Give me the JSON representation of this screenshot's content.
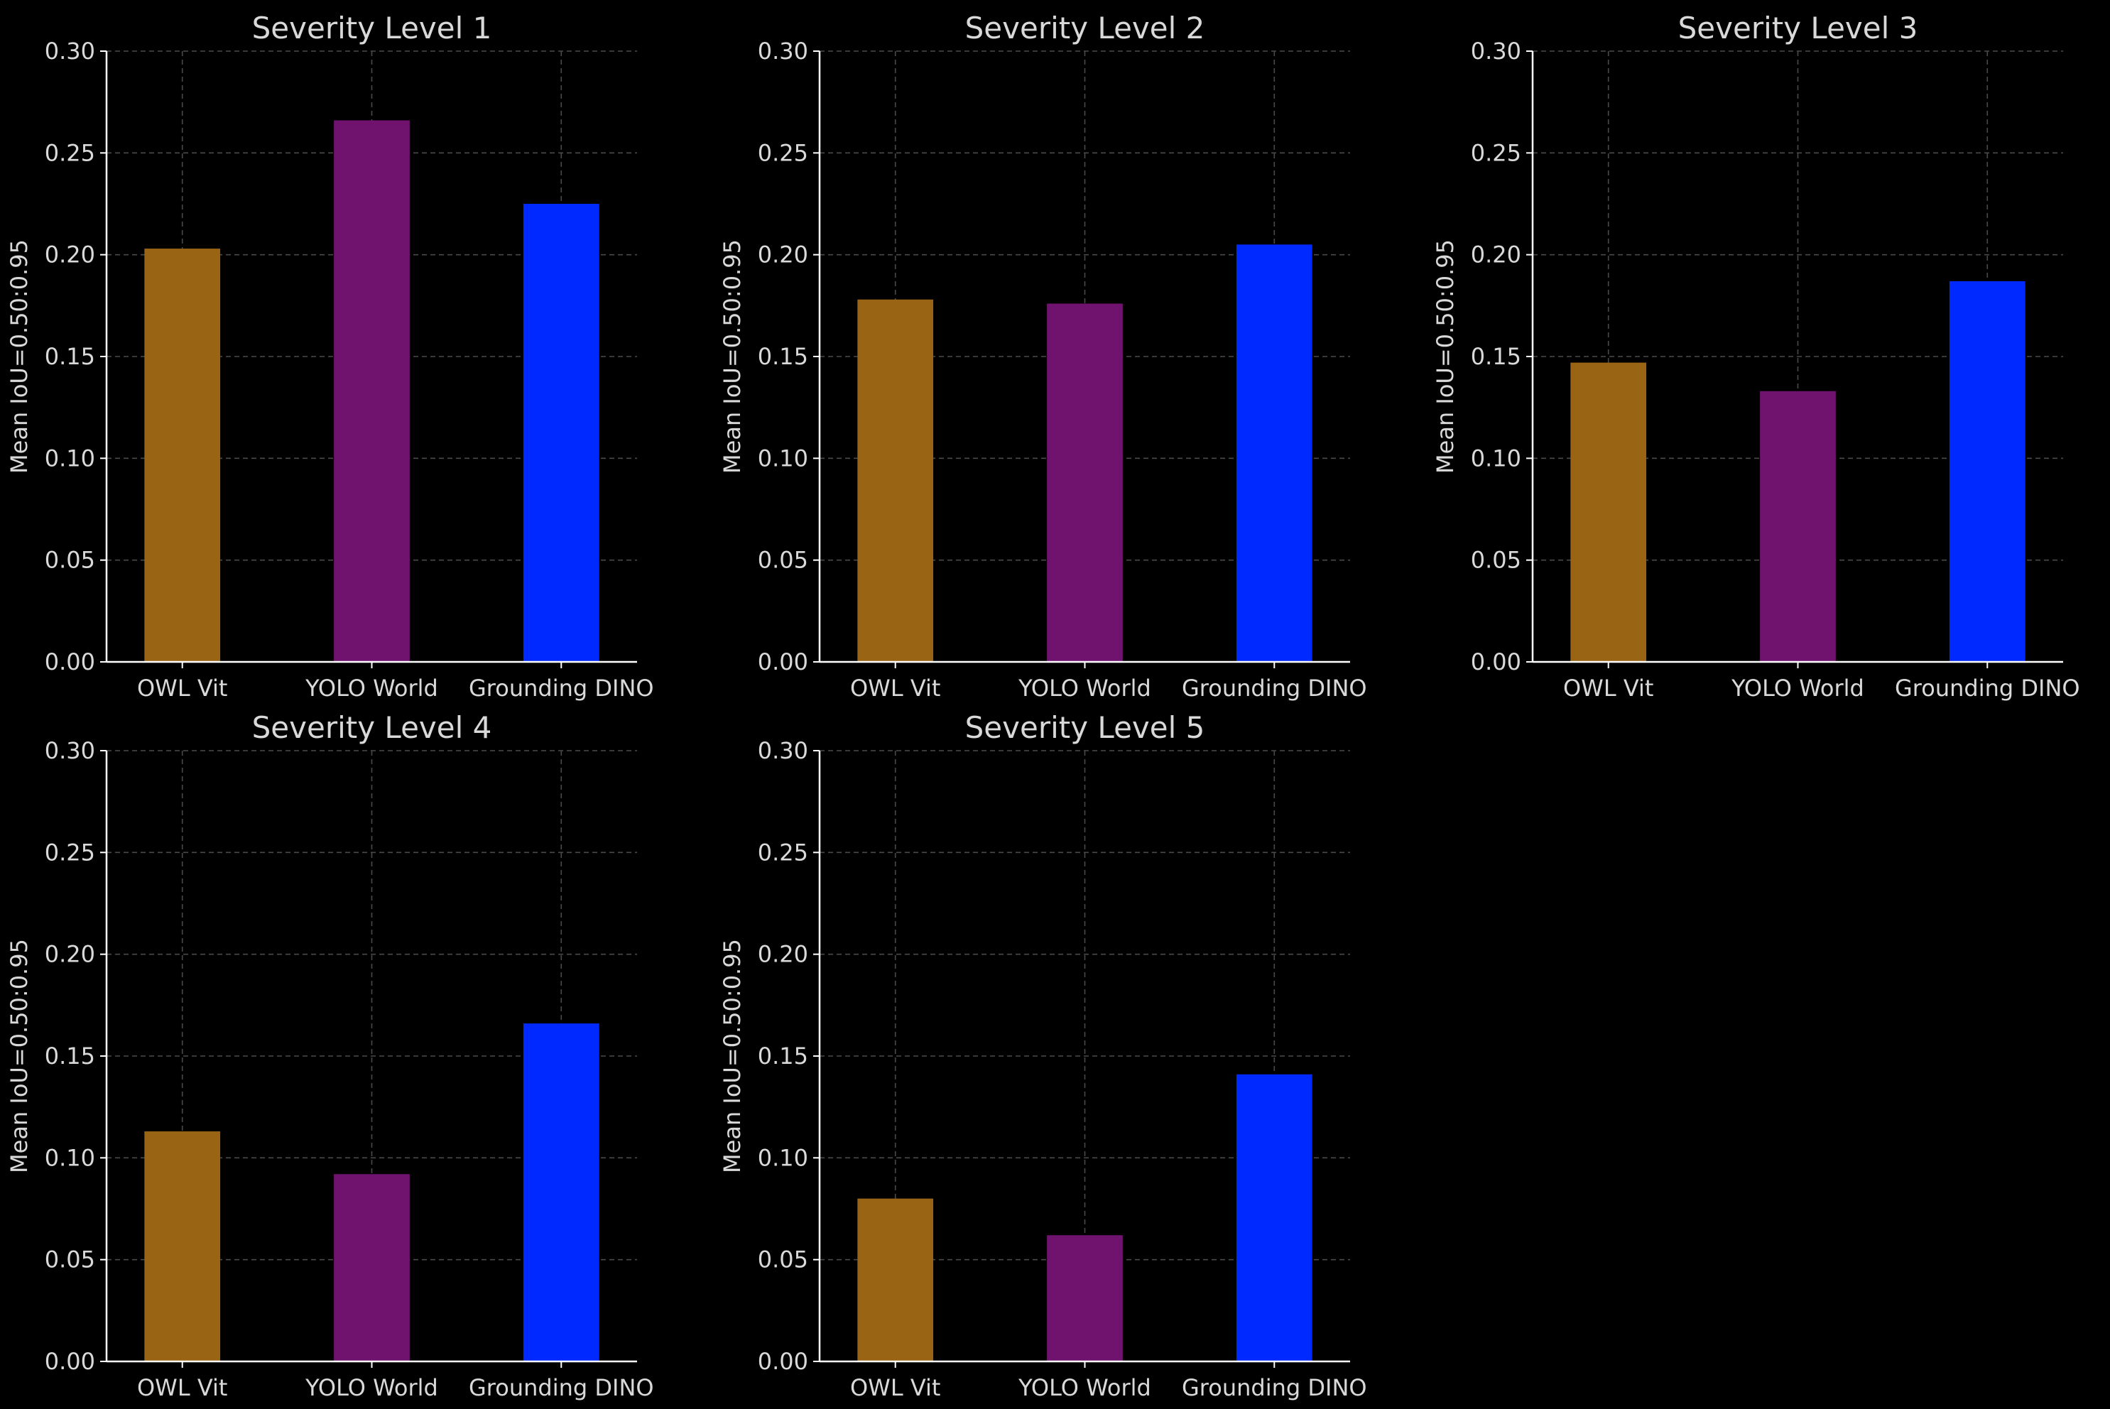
{
  "colors": {
    "background": "#000000",
    "text": "#d9d9d9",
    "axis": "#ffffff",
    "grid": "#4a4a4a",
    "bars": [
      "#996515",
      "#6f136f",
      "#0029ff"
    ]
  },
  "chart_data": [
    {
      "type": "bar",
      "title": "Severity Level 1",
      "xlabel": "",
      "ylabel": "Mean IoU=0.50:0.95",
      "categories": [
        "OWL Vit",
        "YOLO World",
        "Grounding DINO"
      ],
      "values": [
        0.203,
        0.266,
        0.225
      ],
      "ylim": [
        0,
        0.3
      ],
      "yticks": [
        "0.00",
        "0.05",
        "0.10",
        "0.15",
        "0.20",
        "0.25",
        "0.30"
      ],
      "grid": true
    },
    {
      "type": "bar",
      "title": "Severity Level 2",
      "xlabel": "",
      "ylabel": "Mean IoU=0.50:0.95",
      "categories": [
        "OWL Vit",
        "YOLO World",
        "Grounding DINO"
      ],
      "values": [
        0.178,
        0.176,
        0.205
      ],
      "ylim": [
        0,
        0.3
      ],
      "yticks": [
        "0.00",
        "0.05",
        "0.10",
        "0.15",
        "0.20",
        "0.25",
        "0.30"
      ],
      "grid": true
    },
    {
      "type": "bar",
      "title": "Severity Level 3",
      "xlabel": "",
      "ylabel": "Mean IoU=0.50:0.95",
      "categories": [
        "OWL Vit",
        "YOLO World",
        "Grounding DINO"
      ],
      "values": [
        0.147,
        0.133,
        0.187
      ],
      "ylim": [
        0,
        0.3
      ],
      "yticks": [
        "0.00",
        "0.05",
        "0.10",
        "0.15",
        "0.20",
        "0.25",
        "0.30"
      ],
      "grid": true
    },
    {
      "type": "bar",
      "title": "Severity Level 4",
      "xlabel": "",
      "ylabel": "Mean IoU=0.50:0.95",
      "categories": [
        "OWL Vit",
        "YOLO World",
        "Grounding DINO"
      ],
      "values": [
        0.113,
        0.092,
        0.166
      ],
      "ylim": [
        0,
        0.3
      ],
      "yticks": [
        "0.00",
        "0.05",
        "0.10",
        "0.15",
        "0.20",
        "0.25",
        "0.30"
      ],
      "grid": true
    },
    {
      "type": "bar",
      "title": "Severity Level 5",
      "xlabel": "",
      "ylabel": "Mean IoU=0.50:0.95",
      "categories": [
        "OWL Vit",
        "YOLO World",
        "Grounding DINO"
      ],
      "values": [
        0.08,
        0.062,
        0.141
      ],
      "ylim": [
        0,
        0.3
      ],
      "yticks": [
        "0.00",
        "0.05",
        "0.10",
        "0.15",
        "0.20",
        "0.25",
        "0.30"
      ],
      "grid": true
    }
  ]
}
